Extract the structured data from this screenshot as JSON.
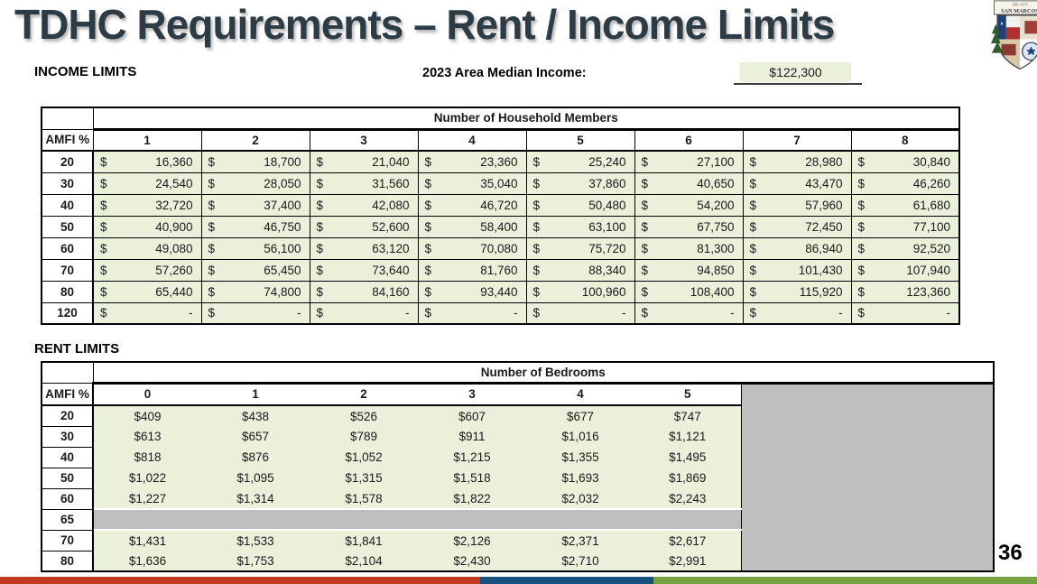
{
  "slide": {
    "title": "TDHC Requirements – Rent / Income Limits",
    "page_number": "36",
    "logo": {
      "line1": "THE CITY",
      "line2": "SAN MARCOS"
    }
  },
  "ami": {
    "label": "2023 Area Median Income:",
    "value": "$122,300"
  },
  "income_limits": {
    "section_title": "INCOME LIMITS",
    "header": "Number of Household Members",
    "row_header": "AMFI %",
    "currency_symbol": "$",
    "columns": [
      "1",
      "2",
      "3",
      "4",
      "5",
      "6",
      "7",
      "8"
    ],
    "rows": [
      {
        "amfi": "20",
        "values": [
          "16,360",
          "18,700",
          "21,040",
          "23,360",
          "25,240",
          "27,100",
          "28,980",
          "30,840"
        ]
      },
      {
        "amfi": "30",
        "values": [
          "24,540",
          "28,050",
          "31,560",
          "35,040",
          "37,860",
          "40,650",
          "43,470",
          "46,260"
        ]
      },
      {
        "amfi": "40",
        "values": [
          "32,720",
          "37,400",
          "42,080",
          "46,720",
          "50,480",
          "54,200",
          "57,960",
          "61,680"
        ]
      },
      {
        "amfi": "50",
        "values": [
          "40,900",
          "46,750",
          "52,600",
          "58,400",
          "63,100",
          "67,750",
          "72,450",
          "77,100"
        ]
      },
      {
        "amfi": "60",
        "values": [
          "49,080",
          "56,100",
          "63,120",
          "70,080",
          "75,720",
          "81,300",
          "86,940",
          "92,520"
        ]
      },
      {
        "amfi": "70",
        "values": [
          "57,260",
          "65,450",
          "73,640",
          "81,760",
          "88,340",
          "94,850",
          "101,430",
          "107,940"
        ]
      },
      {
        "amfi": "80",
        "values": [
          "65,440",
          "74,800",
          "84,160",
          "93,440",
          "100,960",
          "108,400",
          "115,920",
          "123,360"
        ]
      },
      {
        "amfi": "120",
        "values": [
          "-",
          "-",
          "-",
          "-",
          "-",
          "-",
          "-",
          "-"
        ]
      }
    ]
  },
  "rent_limits": {
    "section_title": "RENT LIMITS",
    "header": "Number of Bedrooms",
    "row_header": "AMFI %",
    "columns": [
      "0",
      "1",
      "2",
      "3",
      "4",
      "5"
    ],
    "rows": [
      {
        "amfi": "20",
        "empty": false,
        "values": [
          "$409",
          "$438",
          "$526",
          "$607",
          "$677",
          "$747"
        ]
      },
      {
        "amfi": "30",
        "empty": false,
        "values": [
          "$613",
          "$657",
          "$789",
          "$911",
          "$1,016",
          "$1,121"
        ]
      },
      {
        "amfi": "40",
        "empty": false,
        "values": [
          "$818",
          "$876",
          "$1,052",
          "$1,215",
          "$1,355",
          "$1,495"
        ]
      },
      {
        "amfi": "50",
        "empty": false,
        "values": [
          "$1,022",
          "$1,095",
          "$1,315",
          "$1,518",
          "$1,693",
          "$1,869"
        ]
      },
      {
        "amfi": "60",
        "empty": false,
        "values": [
          "$1,227",
          "$1,314",
          "$1,578",
          "$1,822",
          "$2,032",
          "$2,243"
        ]
      },
      {
        "amfi": "65",
        "empty": true,
        "values": [
          "",
          "",
          "",
          "",
          "",
          ""
        ]
      },
      {
        "amfi": "70",
        "empty": false,
        "values": [
          "$1,431",
          "$1,533",
          "$1,841",
          "$2,126",
          "$2,371",
          "$2,617"
        ]
      },
      {
        "amfi": "80",
        "empty": false,
        "values": [
          "$1,636",
          "$1,753",
          "$2,104",
          "$2,430",
          "$2,710",
          "$2,991"
        ]
      }
    ]
  },
  "colors": {
    "cell_green": "#EBF0DB",
    "gray_block": "#BFBFBF",
    "title_color": "#2D3B45",
    "bar_red": "#C23A21",
    "bar_blue": "#15507E",
    "bar_green": "#76A23F"
  }
}
